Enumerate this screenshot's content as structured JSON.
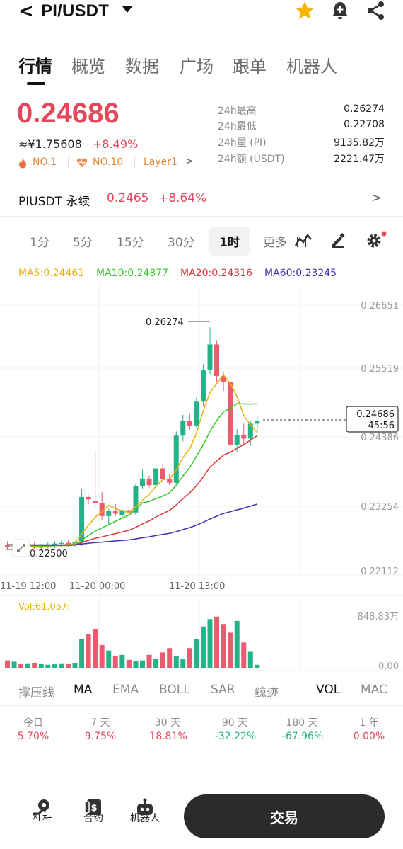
{
  "header": {
    "back_glyph": "<",
    "pair": "PI/USDT",
    "icons": [
      "star-icon",
      "bell-plus-icon",
      "share-icon"
    ]
  },
  "tabs": [
    {
      "label": "行情",
      "active": true
    },
    {
      "label": "概览"
    },
    {
      "label": "数据"
    },
    {
      "label": "广场"
    },
    {
      "label": "跟单"
    },
    {
      "label": "机器人"
    }
  ],
  "ticker": {
    "price": "0.24686",
    "cny": "≈¥1.75608",
    "change": "+8.49%",
    "badges": [
      "NO.1",
      "NO.10",
      "Layer1"
    ],
    "stats": [
      {
        "label": "24h最高",
        "value": "0.26274"
      },
      {
        "label": "24h最低",
        "value": "0.22708"
      },
      {
        "label": "24h量 (PI)",
        "value": "9135.82万"
      },
      {
        "label": "24h额 (USDT)",
        "value": "2221.47万"
      }
    ]
  },
  "perp": {
    "name": "PIUSDT 永续",
    "price": "0.2465",
    "change": "+8.64%"
  },
  "intervals": [
    "1分",
    "5分",
    "15分",
    "30分",
    "1时",
    "更多"
  ],
  "ma_legend": {
    "ma5": "MA5:0.24461",
    "ma10": "MA10:0.24877",
    "ma20": "MA20:0.24316",
    "ma60": "MA60:0.23245"
  },
  "chart_data": {
    "type": "candlestick",
    "price_axis_ticks": [
      "0.26651",
      "0.25519",
      "0.24386",
      "0.23254",
      "0.22112"
    ],
    "x_ticks": [
      "11-19 12:00",
      "11-20 00:00",
      "11-20 13:00"
    ],
    "high_label": "0.26274",
    "low_label": "0.22500",
    "current_price_label": "0.24686",
    "countdown_label": "45:56",
    "volume_label": "Vol:61.05万",
    "volume_axis_ticks": [
      "848.83万",
      "0.00"
    ],
    "colors": {
      "up": "#23b388",
      "down": "#ea5b6f",
      "ma5": "#e8b10e",
      "ma10": "#35c92b",
      "ma20": "#d53636",
      "ma60": "#4a2ab0"
    },
    "candles": [
      {
        "o": 0.2262,
        "h": 0.2268,
        "l": 0.2254,
        "c": 0.2258
      },
      {
        "o": 0.2258,
        "h": 0.2262,
        "l": 0.225,
        "c": 0.2261
      },
      {
        "o": 0.2261,
        "h": 0.2266,
        "l": 0.2255,
        "c": 0.2256
      },
      {
        "o": 0.2256,
        "h": 0.2262,
        "l": 0.225,
        "c": 0.226
      },
      {
        "o": 0.226,
        "h": 0.2266,
        "l": 0.2255,
        "c": 0.2257
      },
      {
        "o": 0.2257,
        "h": 0.2263,
        "l": 0.2252,
        "c": 0.226
      },
      {
        "o": 0.226,
        "h": 0.2266,
        "l": 0.2256,
        "c": 0.2262
      },
      {
        "o": 0.2262,
        "h": 0.2268,
        "l": 0.2256,
        "c": 0.2264
      },
      {
        "o": 0.2264,
        "h": 0.227,
        "l": 0.2258,
        "c": 0.2265
      },
      {
        "o": 0.2265,
        "h": 0.227,
        "l": 0.2259,
        "c": 0.2262
      },
      {
        "o": 0.2262,
        "h": 0.2268,
        "l": 0.2258,
        "c": 0.2266
      },
      {
        "o": 0.2266,
        "h": 0.2355,
        "l": 0.226,
        "c": 0.2342
      },
      {
        "o": 0.2342,
        "h": 0.2345,
        "l": 0.233,
        "c": 0.2338
      },
      {
        "o": 0.2335,
        "h": 0.2418,
        "l": 0.2325,
        "c": 0.2332
      },
      {
        "o": 0.2332,
        "h": 0.235,
        "l": 0.2304,
        "c": 0.231
      },
      {
        "o": 0.231,
        "h": 0.2322,
        "l": 0.2295,
        "c": 0.2318
      },
      {
        "o": 0.2318,
        "h": 0.233,
        "l": 0.231,
        "c": 0.2314
      },
      {
        "o": 0.2312,
        "h": 0.2322,
        "l": 0.2308,
        "c": 0.232
      },
      {
        "o": 0.232,
        "h": 0.2326,
        "l": 0.231,
        "c": 0.2316
      },
      {
        "o": 0.2316,
        "h": 0.2365,
        "l": 0.2312,
        "c": 0.236
      },
      {
        "o": 0.236,
        "h": 0.2388,
        "l": 0.2356,
        "c": 0.2373
      },
      {
        "o": 0.2373,
        "h": 0.2378,
        "l": 0.2358,
        "c": 0.2362
      },
      {
        "o": 0.2362,
        "h": 0.2398,
        "l": 0.2358,
        "c": 0.239
      },
      {
        "o": 0.239,
        "h": 0.2396,
        "l": 0.2368,
        "c": 0.2372
      },
      {
        "o": 0.2372,
        "h": 0.238,
        "l": 0.2362,
        "c": 0.2366
      },
      {
        "o": 0.2366,
        "h": 0.2452,
        "l": 0.2362,
        "c": 0.2445
      },
      {
        "o": 0.2445,
        "h": 0.248,
        "l": 0.2435,
        "c": 0.247
      },
      {
        "o": 0.247,
        "h": 0.2482,
        "l": 0.2455,
        "c": 0.2462
      },
      {
        "o": 0.2462,
        "h": 0.251,
        "l": 0.2458,
        "c": 0.2502
      },
      {
        "o": 0.2502,
        "h": 0.2565,
        "l": 0.2495,
        "c": 0.2555
      },
      {
        "o": 0.2555,
        "h": 0.2627,
        "l": 0.2548,
        "c": 0.2598
      },
      {
        "o": 0.2598,
        "h": 0.2605,
        "l": 0.2535,
        "c": 0.2545
      },
      {
        "o": 0.2545,
        "h": 0.2552,
        "l": 0.252,
        "c": 0.2535
      },
      {
        "o": 0.2535,
        "h": 0.2546,
        "l": 0.2425,
        "c": 0.243
      },
      {
        "o": 0.243,
        "h": 0.2456,
        "l": 0.2418,
        "c": 0.2446
      },
      {
        "o": 0.2446,
        "h": 0.2465,
        "l": 0.2428,
        "c": 0.244
      },
      {
        "o": 0.244,
        "h": 0.247,
        "l": 0.2428,
        "c": 0.2465
      },
      {
        "o": 0.2465,
        "h": 0.2478,
        "l": 0.2452,
        "c": 0.2469
      }
    ],
    "volumes": [
      130,
      110,
      70,
      72,
      90,
      70,
      60,
      68,
      72,
      70,
      90,
      480,
      560,
      640,
      380,
      290,
      200,
      220,
      140,
      120,
      130,
      220,
      150,
      260,
      330,
      200,
      150,
      330,
      480,
      680,
      800,
      840,
      720,
      580,
      770,
      420,
      270,
      60
    ]
  },
  "indicators": [
    "撑压线",
    "MA",
    "EMA",
    "BOLL",
    "SAR",
    "鲸迹",
    "VOL",
    "MAC"
  ],
  "performance": [
    {
      "period": "今日",
      "value": "5.70%",
      "dir": "up"
    },
    {
      "period": "7 天",
      "value": "9.75%",
      "dir": "up"
    },
    {
      "period": "30 天",
      "value": "18.81%",
      "dir": "up"
    },
    {
      "period": "90 天",
      "value": "-32.22%",
      "dir": "down"
    },
    {
      "period": "180 天",
      "value": "-67.96%",
      "dir": "down"
    },
    {
      "period": "1 年",
      "value": "0.00%",
      "dir": "up"
    }
  ],
  "bottom": {
    "items": [
      "杠杆",
      "合约",
      "机器人"
    ],
    "trade_label": "交易"
  }
}
